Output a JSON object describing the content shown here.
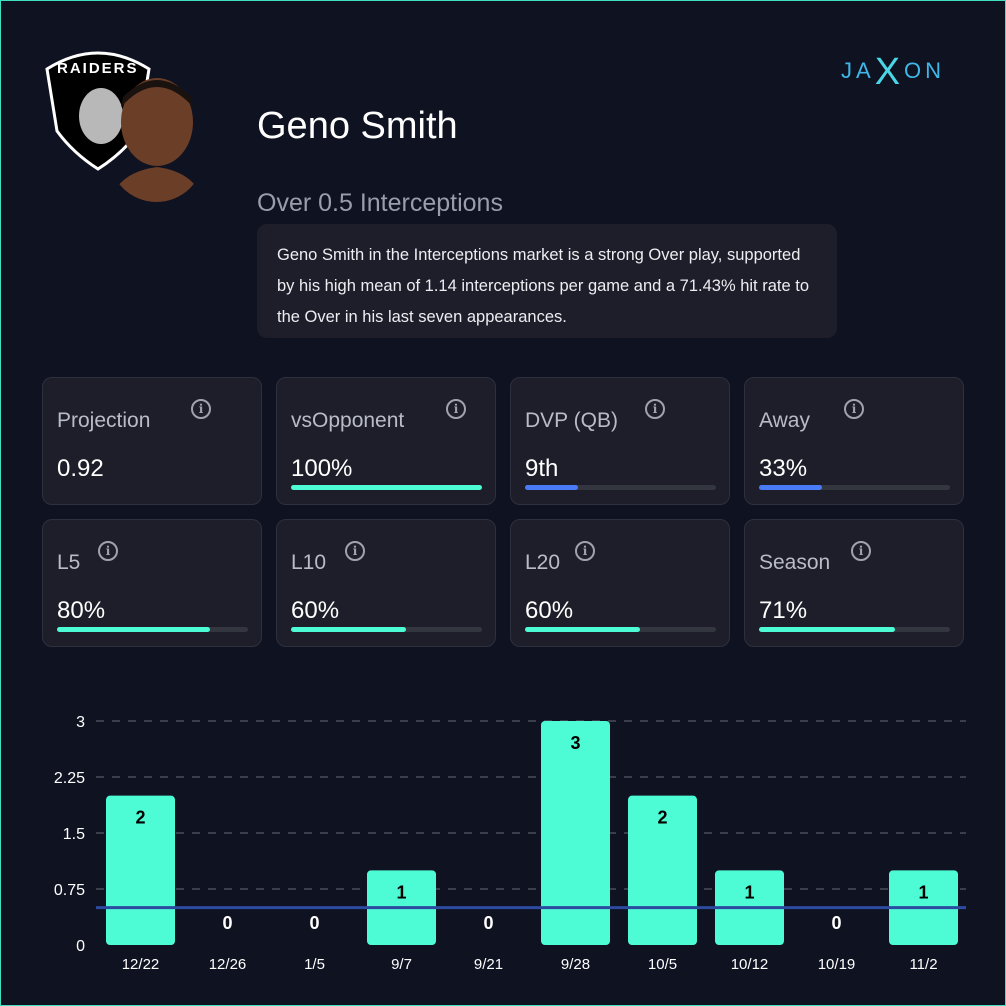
{
  "brand": {
    "logo_text": "JAXON"
  },
  "team": {
    "logo_text": "RAIDERS"
  },
  "player": {
    "name": "Geno Smith",
    "market": "Over 0.5 Interceptions",
    "summary": "Geno Smith in the Interceptions market is a strong Over play, supported by his high mean of 1.14 interceptions per game and a 71.43% hit rate to the Over in his last seven appearances."
  },
  "colors": {
    "accent": "#4dfcd4",
    "blue": "#4a7bf7",
    "line": "#2b4aa0"
  },
  "stats": [
    {
      "label": "Projection",
      "value": "0.92",
      "bar": null,
      "color": null
    },
    {
      "label": "vsOpponent",
      "value": "100%",
      "bar": 100,
      "color": "#4dfcd4"
    },
    {
      "label": "DVP (QB)",
      "value": "9th",
      "bar": 28,
      "color": "#4a7bf7"
    },
    {
      "label": "Away",
      "value": "33%",
      "bar": 33,
      "color": "#4a7bf7"
    },
    {
      "label": "L5",
      "value": "80%",
      "bar": 80,
      "color": "#4dfcd4"
    },
    {
      "label": "L10",
      "value": "60%",
      "bar": 60,
      "color": "#4dfcd4"
    },
    {
      "label": "L20",
      "value": "60%",
      "bar": 60,
      "color": "#4dfcd4"
    },
    {
      "label": "Season",
      "value": "71%",
      "bar": 71,
      "color": "#4dfcd4"
    }
  ],
  "chart_data": {
    "type": "bar",
    "categories": [
      "12/22",
      "12/26",
      "1/5",
      "9/7",
      "9/21",
      "9/28",
      "10/5",
      "10/12",
      "10/19",
      "11/2"
    ],
    "values": [
      2,
      0,
      0,
      1,
      0,
      3,
      2,
      1,
      0,
      1
    ],
    "yticks": [
      "0",
      "0.75",
      "1.5",
      "2.25",
      "3"
    ],
    "ylim": [
      0,
      3
    ],
    "threshold": 0.5,
    "grid": true,
    "bar_color": "#4dfcd4"
  }
}
